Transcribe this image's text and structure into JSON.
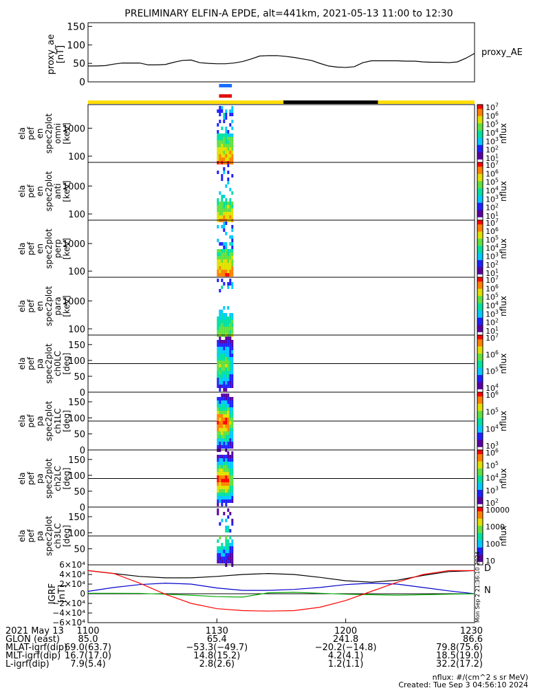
{
  "title": "PRELIMINARY ELFIN-A EPDE, alt=441km, 2021-05-13 11:00 to 12:30",
  "chart_data": [
    {
      "type": "line",
      "panel": "proxy_ae",
      "ylabel": [
        "proxy_ae",
        "[nT]"
      ],
      "legend": "proxy_AE",
      "ylim": [
        0,
        160
      ],
      "yticks": [
        "150",
        "100",
        "50",
        "0"
      ],
      "x_minutes": [
        0,
        2,
        4,
        6,
        8,
        10,
        12,
        14,
        16,
        18,
        20,
        22,
        24,
        26,
        28,
        30,
        32,
        34,
        36,
        38,
        40,
        42,
        44,
        46,
        48,
        50,
        52,
        54,
        56,
        58,
        60,
        62,
        64,
        66,
        68,
        70,
        72,
        74,
        76,
        78,
        80,
        82,
        84,
        86,
        88,
        90
      ],
      "values": [
        43,
        43,
        44,
        48,
        51,
        51,
        51,
        46,
        46,
        47,
        53,
        58,
        59,
        52,
        50,
        49,
        49,
        51,
        55,
        62,
        70,
        71,
        71,
        69,
        66,
        62,
        58,
        50,
        43,
        40,
        39,
        41,
        52,
        57,
        57,
        57,
        57,
        56,
        56,
        54,
        53,
        53,
        52,
        54,
        64,
        77
      ]
    },
    {
      "type": "bar",
      "panel": "science-zone-bars",
      "legend": "",
      "blue_bar_minutes": [
        30.5,
        33.5
      ],
      "red_bar_minutes": [
        30.5,
        33.5
      ],
      "status_bar": [
        {
          "from": 0,
          "to": 45.5,
          "color": "#ffdd00"
        },
        {
          "from": 45.5,
          "to": 67.5,
          "color": "#000000"
        },
        {
          "from": 67.5,
          "to": 90,
          "color": "#ffdd00"
        }
      ]
    },
    {
      "type": "heatmap",
      "panel": "energy-omni",
      "ylabel": [
        "ela",
        "pef",
        "en",
        "spec2plot",
        "omni",
        "[keV]"
      ],
      "yticks": [
        "1000",
        "100"
      ],
      "colorbar_label": "nflux",
      "colorbar_ticks": [
        "10^7",
        "10^6",
        "10^5",
        "10^4",
        "10^3",
        "10^2",
        "10^1"
      ],
      "time_range_minutes": [
        30.0,
        33.6
      ]
    },
    {
      "type": "heatmap",
      "panel": "energy-anti",
      "ylabel": [
        "ela",
        "pef",
        "en",
        "spec2plot",
        "anti",
        "[keV]"
      ],
      "yticks": [
        "1000",
        "100"
      ],
      "colorbar_label": "nflux",
      "colorbar_ticks": [
        "10^7",
        "10^6",
        "10^5",
        "10^4",
        "10^3",
        "10^2",
        "10^1"
      ],
      "time_range_minutes": [
        30.0,
        33.6
      ]
    },
    {
      "type": "heatmap",
      "panel": "energy-perp",
      "ylabel": [
        "ela",
        "pef",
        "en",
        "spec2plot",
        "perp",
        "[keV]"
      ],
      "yticks": [
        "1000",
        "100"
      ],
      "colorbar_label": "nflux",
      "colorbar_ticks": [
        "10^7",
        "10^6",
        "10^5",
        "10^4",
        "10^3",
        "10^2",
        "10^1"
      ],
      "time_range_minutes": [
        30.0,
        33.6
      ]
    },
    {
      "type": "heatmap",
      "panel": "energy-para",
      "ylabel": [
        "ela",
        "pef",
        "en",
        "spec2plot",
        "para",
        "[keV]"
      ],
      "yticks": [
        "1000",
        "100"
      ],
      "colorbar_label": "nflux",
      "colorbar_ticks": [
        "10^7",
        "10^6",
        "10^5",
        "10^4",
        "10^3",
        "10^2",
        "10^1"
      ],
      "time_range_minutes": [
        30.0,
        33.6
      ]
    },
    {
      "type": "heatmap",
      "panel": "pa-ch0",
      "ylabel": [
        "ela",
        "pef",
        "pa",
        "spec2plot",
        "ch0LC",
        "[deg]"
      ],
      "yticks": [
        "150",
        "100",
        "50",
        "0"
      ],
      "colorbar_label": "nflux",
      "colorbar_ticks": [
        "10^7",
        "10^6",
        "10^5",
        "10^4"
      ],
      "time_range_minutes": [
        30.0,
        33.6
      ]
    },
    {
      "type": "heatmap",
      "panel": "pa-ch1",
      "ylabel": [
        "ela",
        "pef",
        "pa",
        "spec2plot",
        "ch1LC",
        "[deg]"
      ],
      "yticks": [
        "150",
        "100",
        "50",
        "0"
      ],
      "colorbar_label": "nflux",
      "colorbar_ticks": [
        "10^6",
        "10^5",
        "10^4",
        "10^3"
      ],
      "time_range_minutes": [
        30.0,
        33.6
      ]
    },
    {
      "type": "heatmap",
      "panel": "pa-ch2",
      "ylabel": [
        "ela",
        "pef",
        "pa",
        "spec2plot",
        "ch2LC",
        "[deg]"
      ],
      "yticks": [
        "150",
        "100",
        "50",
        "0"
      ],
      "colorbar_label": "nflux",
      "colorbar_ticks": [
        "10^6",
        "10^5",
        "10^4",
        "10^3",
        "10^2"
      ],
      "time_range_minutes": [
        30.0,
        33.6
      ]
    },
    {
      "type": "heatmap",
      "panel": "pa-ch3",
      "ylabel": [
        "ela",
        "pef",
        "pa",
        "spec2plot",
        "ch3LC",
        "[deg]"
      ],
      "yticks": [
        "150",
        "100",
        "50"
      ],
      "colorbar_label": "nflux",
      "colorbar_ticks": [
        "10000",
        "1000",
        "100",
        "10"
      ],
      "time_range_minutes": [
        30.0,
        33.6
      ]
    },
    {
      "type": "line",
      "panel": "igrf",
      "ylabel": [
        "IGRF",
        "[nT]"
      ],
      "ylim": [
        -60000,
        60000
      ],
      "yticks": [
        "6×10⁴",
        "4×10⁴",
        "2×10⁴",
        "0",
        "−2×10⁴",
        "−4×10⁴",
        "−6×10⁴"
      ],
      "legend_entries": [
        "D",
        "N"
      ],
      "x_minutes": [
        0,
        6,
        12,
        18,
        24,
        30,
        36,
        42,
        48,
        54,
        60,
        66,
        72,
        78,
        84,
        90
      ],
      "series": [
        {
          "color": "#000000",
          "values": [
            48000,
            42000,
            36000,
            33000,
            33000,
            36000,
            40000,
            42000,
            40000,
            34000,
            27000,
            24000,
            28000,
            38000,
            46000,
            48000
          ]
        },
        {
          "color": "#0000cc",
          "values": [
            5000,
            13000,
            19000,
            22000,
            20000,
            12000,
            7000,
            7000,
            9000,
            13000,
            19000,
            22000,
            20000,
            13000,
            6000,
            0
          ]
        },
        {
          "color": "#00aa00",
          "values": [
            1000,
            1000,
            800,
            -1000,
            -3000,
            -6000,
            -7000,
            2000,
            3000,
            1000,
            -1000,
            -2000,
            -3000,
            -2000,
            -1000,
            0
          ]
        },
        {
          "color": "#ff0000",
          "values": [
            48000,
            42000,
            22000,
            -1000,
            -20000,
            -31000,
            -35000,
            -36000,
            -35000,
            -28000,
            -14000,
            5000,
            24000,
            40000,
            48000,
            48000
          ]
        }
      ]
    }
  ],
  "stamp": "Mon Sep  2 21:36:10 2024",
  "x_axis": {
    "ticks": [
      {
        "minute": 0,
        "label": "1100"
      },
      {
        "minute": 30,
        "label": "1130"
      },
      {
        "minute": 60,
        "label": "1200"
      },
      {
        "minute": 90,
        "label": "1230"
      }
    ],
    "rows": [
      {
        "label": "2021 May 13",
        "values": [
          "1100",
          "1130",
          "1200",
          "1230"
        ]
      },
      {
        "label": "GLON (east)",
        "values": [
          "85.0",
          "65.4",
          "241.8",
          "86.6"
        ]
      },
      {
        "label": "MLAT-igrf(dip)",
        "values": [
          "69.0(63.7)",
          "−53.3(−49.7)",
          "−20.2(−14.8)",
          "79.8(75.6)"
        ]
      },
      {
        "label": "MLT-igrf(dip)",
        "values": [
          "16.7(17.0)",
          "14.8(15.2)",
          "4.2(4.1)",
          "18.5(19.0)"
        ]
      },
      {
        "label": "L-igrf(dip)",
        "values": [
          "7.9(5.4)",
          "2.8(2.6)",
          "1.2(1.1)",
          "32.2(17.2)"
        ]
      }
    ]
  },
  "footer": {
    "units": "nflux: #/(cm^2 s sr MeV)",
    "created": "Created: Tue Sep  3 04:56:10 2024"
  },
  "colors": {
    "blue_bar": "#1a6cff",
    "red_bar": "#e01010",
    "yellow": "#ffdd00",
    "colormap": [
      "#ffffff",
      "#5a00a0",
      "#2020ff",
      "#00c8ff",
      "#00e0a0",
      "#60e040",
      "#e0e000",
      "#ff8000",
      "#ff0000"
    ]
  }
}
